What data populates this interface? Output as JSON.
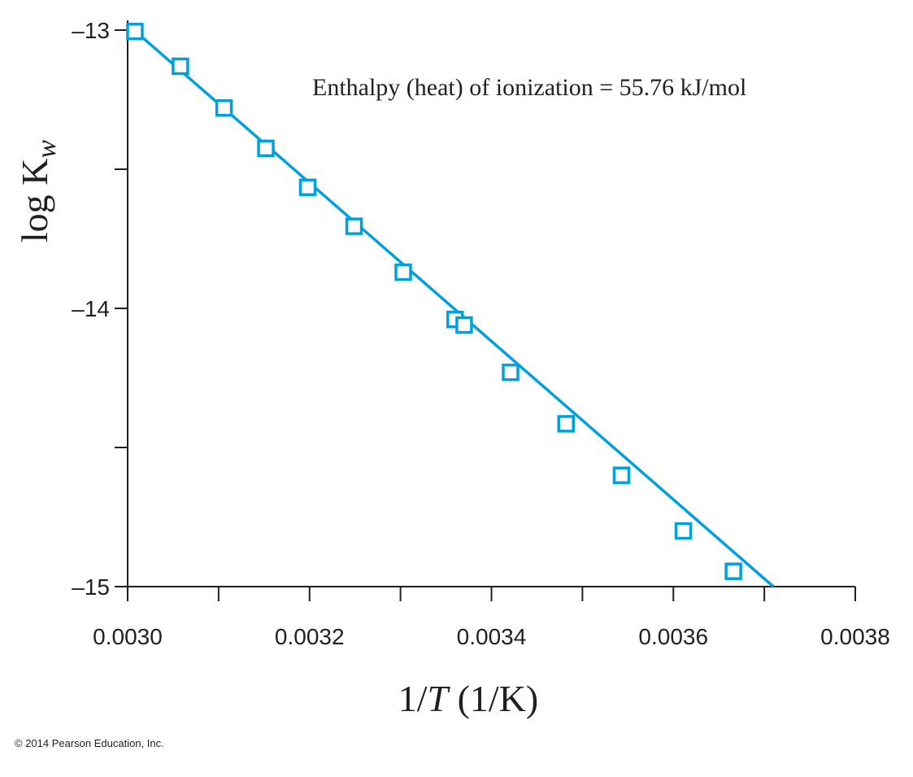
{
  "chart_data": {
    "type": "scatter",
    "annotation": "Enthalpy (heat) of ionization = 55.76 kJ/mol",
    "ylabel_main": "log K",
    "ylabel_sub": "w",
    "xlabel_num": "1/",
    "xlabel_var": "T",
    "xlabel_unit": " (1/K)",
    "xlim": [
      0.003,
      0.0038
    ],
    "ylim": [
      -15.0,
      -13.0
    ],
    "x_ticks": [
      0.003,
      0.0031,
      0.0032,
      0.0033,
      0.0034,
      0.0035,
      0.0036,
      0.0037,
      0.0038
    ],
    "x_tick_labels": [
      "0.0030",
      "",
      "0.0032",
      "",
      "0.0034",
      "",
      "0.0036",
      "",
      "0.0038"
    ],
    "y_ticks": [
      -13.0,
      -13.5,
      -14.0,
      -14.5,
      -15.0
    ],
    "y_tick_labels": [
      "–13",
      "",
      "–14",
      "",
      "–15"
    ],
    "series": [
      {
        "marker": "open-square",
        "color": "#00a0e0",
        "points": [
          [
            0.003008,
            -13.005
          ],
          [
            0.003058,
            -13.13
          ],
          [
            0.003106,
            -13.28
          ],
          [
            0.003152,
            -13.425
          ],
          [
            0.003198,
            -13.565
          ],
          [
            0.003249,
            -13.705
          ],
          [
            0.003303,
            -13.87
          ],
          [
            0.00336,
            -14.04
          ],
          [
            0.00337,
            -14.06
          ],
          [
            0.003421,
            -14.23
          ],
          [
            0.003482,
            -14.415
          ],
          [
            0.003543,
            -14.6
          ],
          [
            0.003611,
            -14.8
          ],
          [
            0.003666,
            -14.945
          ]
        ]
      }
    ],
    "fit_line": {
      "x": [
        0.003,
        0.00371
      ],
      "y": [
        -12.98,
        -15.0
      ],
      "color": "#00a0e0"
    },
    "grid": false
  },
  "footer": {
    "copyright": "© 2014 Pearson Education, Inc."
  }
}
